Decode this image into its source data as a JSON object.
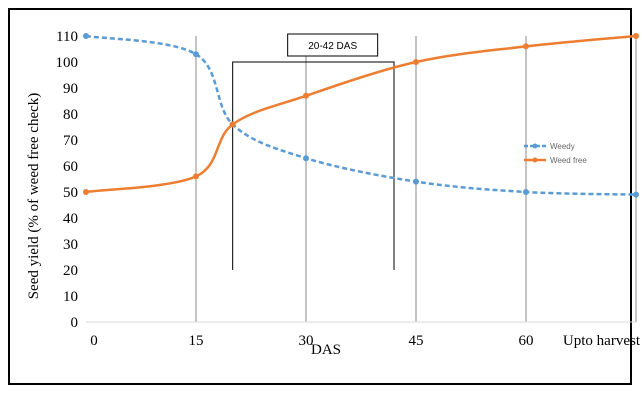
{
  "chart_data": {
    "type": "line",
    "title": "",
    "xlabel": "DAS",
    "ylabel": "Seed yield (% of weed free check)",
    "categories": [
      "0",
      "15",
      "30",
      "45",
      "60",
      "Upto harvest"
    ],
    "ylim": [
      0,
      110
    ],
    "yticks": [
      0,
      10,
      20,
      30,
      40,
      50,
      60,
      70,
      80,
      90,
      100,
      110
    ],
    "grid": "vertical",
    "legend_position": "right",
    "annotation": {
      "text": "20-42 DAS",
      "x_start": 20,
      "x_end": 42,
      "y_bottom": 20,
      "y_top": 100
    },
    "series": [
      {
        "name": "Weedy",
        "color": "#5b9bd5",
        "dash": "dashed",
        "points": [
          {
            "x": 0,
            "y": 110
          },
          {
            "x": 15,
            "y": 103
          },
          {
            "x": 20,
            "y": 76
          },
          {
            "x": 30,
            "y": 63
          },
          {
            "x": 45,
            "y": 54
          },
          {
            "x": 60,
            "y": 50
          },
          {
            "x": 75,
            "y": 49
          }
        ]
      },
      {
        "name": "Weed free",
        "color": "#ed7d31",
        "dash": "solid",
        "points": [
          {
            "x": 0,
            "y": 50
          },
          {
            "x": 15,
            "y": 56
          },
          {
            "x": 20,
            "y": 76
          },
          {
            "x": 30,
            "y": 87
          },
          {
            "x": 45,
            "y": 100
          },
          {
            "x": 60,
            "y": 106
          },
          {
            "x": 75,
            "y": 110
          }
        ]
      }
    ]
  }
}
